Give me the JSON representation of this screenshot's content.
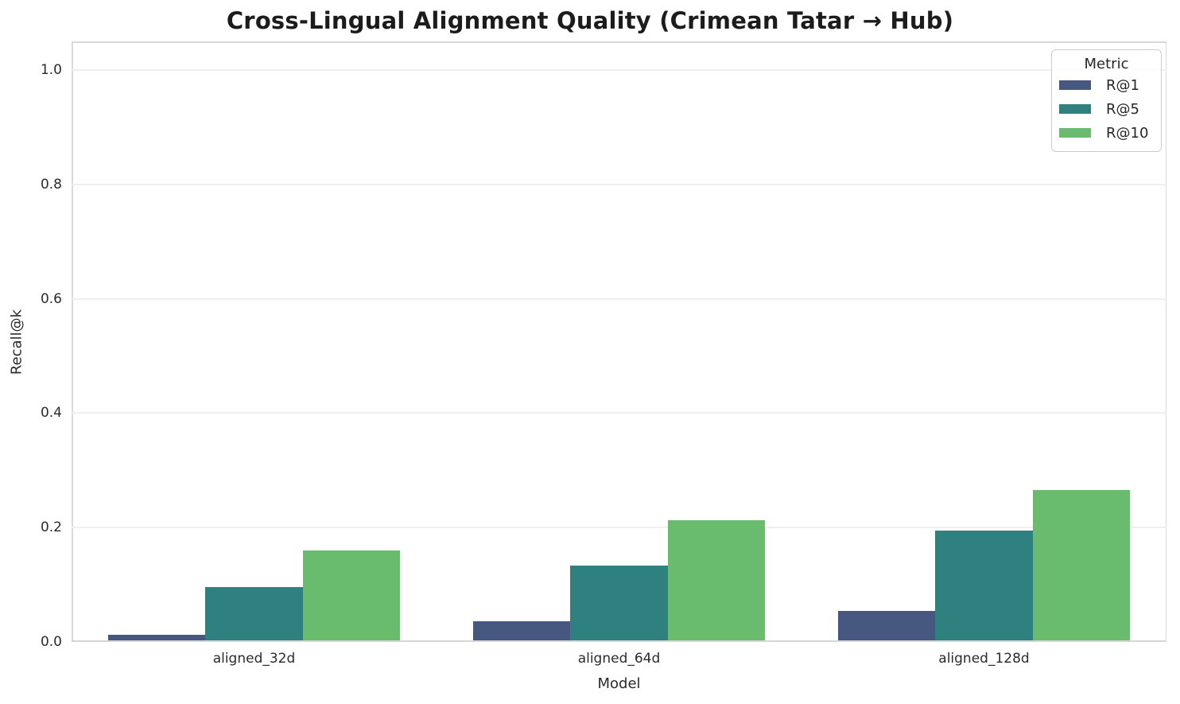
{
  "chart_data": {
    "type": "bar",
    "title": "Cross-Lingual Alignment Quality (Crimean Tatar → Hub)",
    "xlabel": "Model",
    "ylabel": "Recall@k",
    "categories": [
      "aligned_32d",
      "aligned_64d",
      "aligned_128d"
    ],
    "series": [
      {
        "name": "R@1",
        "color": "#465880",
        "values": [
          0.013,
          0.036,
          0.054
        ]
      },
      {
        "name": "R@5",
        "color": "#2e817e",
        "values": [
          0.096,
          0.134,
          0.195
        ]
      },
      {
        "name": "R@10",
        "color": "#69bc6d",
        "values": [
          0.16,
          0.213,
          0.266
        ]
      }
    ],
    "ylim": [
      0,
      1.05
    ],
    "yticks": [
      0.0,
      0.2,
      0.4,
      0.6,
      0.8,
      1.0
    ],
    "ytick_labels": [
      "0.0",
      "0.2",
      "0.4",
      "0.6",
      "0.8",
      "1.0"
    ],
    "grid": true,
    "group_width": 0.8,
    "legend": {
      "title": "Metric",
      "position": "upper-right"
    }
  },
  "colors": {
    "bar_r1": "#465880",
    "bar_r5": "#2e817e",
    "bar_r10": "#69bc6d",
    "grid": "#efefef",
    "spine": "#d9d9dd"
  }
}
